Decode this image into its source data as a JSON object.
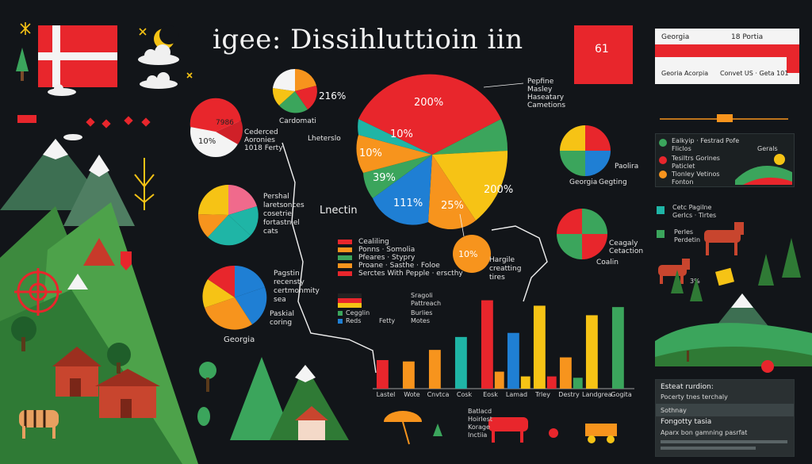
{
  "title": "igee: Dissihluttioin iin",
  "colors": {
    "red": "#e8262c",
    "orange": "#f7941d",
    "yellow": "#f6c315",
    "green": "#3ba55c",
    "blue": "#1f7fd4",
    "teal": "#1fb5a6",
    "pink": "#f06a8c",
    "dark": "#121519",
    "forest": "#3d8a3e"
  },
  "top_right_card": {
    "row1_left": "Georgia",
    "row1_right": "18 Portia",
    "row2_left": "Georia Acorpia",
    "row2_right": "Convet US · Geta 101"
  },
  "flag_badge": {
    "text": "61"
  },
  "pie_labels": {
    "small_top": {
      "value": "216%",
      "label": "Cardomati"
    },
    "white_pie": {
      "inner_top": "7986",
      "inner_left": "10%",
      "label_line1": "Cederced",
      "label_line2": "Aoronies",
      "label_line3": "1018 Ferty"
    },
    "pie3": {
      "line1": "Pershal",
      "line2": "laretsonces",
      "line3": "cosetrie",
      "line4": "fortastniel",
      "line5": "cats"
    },
    "pie4": {
      "line1": "Pagstin",
      "line2": "recensty",
      "line3": "certmonmity",
      "line4": "sea",
      "line5": "Paskial",
      "line6": "coring",
      "label": "Georgia"
    },
    "big_pie": {
      "red_pct": "200%",
      "a": "10%",
      "b": "10%",
      "c": "39%",
      "d": "111%",
      "e": "25%",
      "f": "200%",
      "g": "10%",
      "label_top1": "Pepfine",
      "label_top2": "Masley",
      "label_top3": "Haseatary",
      "label_top4": "Cametions",
      "label_left": "Lheterslo",
      "label_center": "Lnectin",
      "label_bottom1": "Hargile",
      "label_bottom2": "creatting",
      "label_bottom3": "tires"
    },
    "pie_right1": {
      "label": "Georgia",
      "side1": "Paolira",
      "side2": "Gegting"
    },
    "pie_right2": {
      "side1": "Ceagaly",
      "side2": "Cetaction",
      "bottom": "Coalin"
    }
  },
  "legend1": [
    {
      "label": "Cealiling",
      "color": "#e8262c"
    },
    {
      "label": "Ponns · Somolia",
      "color": "#f7941d"
    },
    {
      "label": "Pfeares · Stypry",
      "color": "#3ba55c"
    },
    {
      "label": "Proane · Sasthe · Foloe",
      "color": "#f7941d"
    },
    {
      "label": "Serctes With Pepple · erscthy",
      "color": "#e8262c"
    }
  ],
  "legend2": [
    {
      "left": "",
      "right": "Sragoli"
    },
    {
      "left": "",
      "right": "Pattreach"
    },
    {
      "left": "Cegglin",
      "right": "Burlies"
    },
    {
      "left": "Reds",
      "right": "Motes"
    },
    {
      "left": "",
      "right": "Fetty"
    }
  ],
  "chart_data": {
    "type": "bar",
    "title": "",
    "xlabel": "",
    "ylabel": "",
    "categories": [
      "Lastel",
      "Wote",
      "Cnvtca",
      "Cosk",
      "Eosk",
      "Lamad",
      "Trley",
      "Destry",
      "Landgrea",
      "Gogita"
    ],
    "series": [
      {
        "values": [
          42,
          40,
          57,
          76,
          130,
          82,
          122,
          46,
          108,
          120
        ]
      },
      {
        "values": [
          0,
          0,
          0,
          0,
          25,
          18,
          18,
          16,
          0,
          0
        ]
      }
    ],
    "series_colors": [
      [
        "#e8262c",
        "#f7941d",
        "#f7941d",
        "#1fb5a6",
        "#e8262c",
        "#1f7fd4",
        "#f6c315",
        "#f7941d",
        "#f6c315",
        "#3ba55c"
      ],
      [
        "",
        "",
        "",
        "",
        "#f7941d",
        "#f6c315",
        "#e8262c",
        "#3ba55c",
        "",
        ""
      ]
    ],
    "ylim": [
      0,
      140
    ],
    "grid": false
  },
  "right_panel_top": {
    "row1": "Ealkyip · Festrad",
    "row2": "Fliclos",
    "row3": "Tesiltrs Gorines",
    "row4": "Paticlet",
    "row5": "Tionley Vetinos",
    "row6": "Fonton",
    "badge": "Pofe",
    "badge2": "Gerals"
  },
  "right_panel_mid": {
    "row1": "Cetc Pagilne",
    "row2": "Gerlcs · Tirtes",
    "row3": "Perles",
    "row4": "Perdetin",
    "pct": "3%"
  },
  "bottom_right_panel": {
    "title": "Esteat rurdion:",
    "body1": "Pocerty tnes terchaly",
    "body2": "Sothnay",
    "title2": "Fongotty tasia",
    "body3": "Aparx bon gamning pasrfat"
  },
  "bottom_center_list": {
    "line1": "Batlacd",
    "line2": "Hoirlest",
    "line3": "Korage",
    "line4": "Inctiia"
  }
}
